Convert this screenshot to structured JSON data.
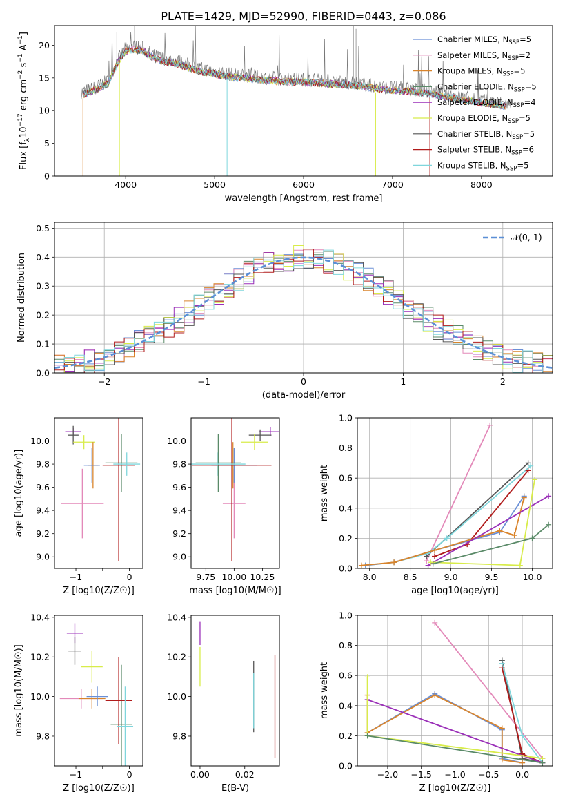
{
  "title": "PLATE=1429, MJD=52990, FIBERID=0443, z=0.086",
  "colors": {
    "chab_miles": "#6a8fd6",
    "salp_miles": "#e389b9",
    "krou_miles": "#d9842b",
    "chab_elodie": "#5a8a68",
    "salp_elodie": "#9a2fb8",
    "krou_elodie": "#d8ec4a",
    "chab_stelib": "#555555",
    "salp_stelib": "#b01b1b",
    "krou_stelib": "#7fd6dc",
    "gaussian": "#5b8fd6",
    "grid": "#b0b0b0"
  },
  "legend_spectrum": [
    {
      "key": "chab_miles",
      "label": "Chabrier MILES, N",
      "sub": "SSP",
      "tail": "=5"
    },
    {
      "key": "salp_miles",
      "label": "Salpeter MILES, N",
      "sub": "SSP",
      "tail": "=2"
    },
    {
      "key": "krou_miles",
      "label": "Kroupa MILES, N",
      "sub": "SSP",
      "tail": "=5"
    },
    {
      "key": "chab_elodie",
      "label": "Chabrier ELODIE, N",
      "sub": "SSP",
      "tail": "=5"
    },
    {
      "key": "salp_elodie",
      "label": "Salpeter ELODIE, N",
      "sub": "SSP",
      "tail": "=4"
    },
    {
      "key": "krou_elodie",
      "label": "Kroupa ELODIE, N",
      "sub": "SSP",
      "tail": "=5"
    },
    {
      "key": "chab_stelib",
      "label": "Chabrier STELIB, N",
      "sub": "SSP",
      "tail": "=5"
    },
    {
      "key": "salp_stelib",
      "label": "Salpeter STELIB, N",
      "sub": "SSP",
      "tail": "=6"
    },
    {
      "key": "krou_stelib",
      "label": "Kroupa STELIB, N",
      "sub": "SSP",
      "tail": "=5"
    }
  ],
  "legend_hist": {
    "label": "𝒩(0, 1)"
  },
  "chart_data": [
    {
      "id": "spectrum",
      "type": "line",
      "xlabel": "wavelength [Angstrom, rest frame]",
      "ylabel_main": "Flux [f",
      "ylabel_sub": "λ",
      "ylabel_mid": "10",
      "ylabel_sup": "−17",
      "ylabel_tail": " erg cm",
      "ylabel_sup2": "−2",
      "ylabel_tail2": " s",
      "ylabel_sup3": "−1",
      "ylabel_tail3": " A",
      "ylabel_sup4": "−1",
      "ylabel_end": "]",
      "xlim": [
        3200,
        8800
      ],
      "ylim": [
        0,
        23
      ],
      "xticks": [
        4000,
        5000,
        6000,
        7000,
        8000
      ],
      "yticks": [
        0,
        5,
        10,
        15,
        20
      ],
      "data_x": [
        3500,
        3600,
        3700,
        3800,
        3900,
        4000,
        4100,
        4200,
        4300,
        4400,
        4500,
        4600,
        4800,
        5000,
        5200,
        5400,
        5600,
        5800,
        6000,
        6200,
        6400,
        6600,
        6800,
        7000,
        7200,
        7400,
        7600,
        7800,
        8000,
        8200,
        8300
      ],
      "data_y": [
        12.8,
        13.2,
        13.8,
        14.5,
        17.5,
        19.5,
        19.8,
        19.5,
        18.5,
        18.0,
        17.8,
        17.5,
        16.5,
        16.0,
        15.5,
        15.3,
        15.0,
        14.8,
        14.8,
        14.6,
        14.4,
        14.2,
        13.8,
        13.5,
        13.3,
        13.0,
        12.5,
        12.0,
        11.6,
        11.2,
        11.0
      ],
      "grid": false
    },
    {
      "id": "residuals",
      "type": "bar",
      "xlabel": "(data-model)/error",
      "ylabel": "Normed distribution",
      "xlim": [
        -2.5,
        2.5
      ],
      "ylim": [
        0,
        0.52
      ],
      "xticks": [
        -2,
        -1,
        0,
        1,
        2
      ],
      "xtick_labels": [
        "−2",
        "−1",
        "0",
        "1",
        "2"
      ],
      "yticks": [
        0.0,
        0.1,
        0.2,
        0.3,
        0.4,
        0.5
      ],
      "ytick_labels": [
        "0.0",
        "0.1",
        "0.2",
        "0.3",
        "0.4",
        "0.5"
      ],
      "grid": true,
      "legend_position": "top-right",
      "gaussian": {
        "mean": 0,
        "sigma": 1
      }
    },
    {
      "id": "age_vs_Z",
      "type": "scatter",
      "xlabel": "Z [log10(Z/Z☉)]",
      "ylabel": "age  [log10(age/yr)]",
      "xlim": [
        -1.4,
        0.25
      ],
      "ylim": [
        8.9,
        10.2
      ],
      "xticks": [
        -1,
        -0.5,
        0
      ],
      "xtick_labels": [
        "−1",
        "",
        "0"
      ],
      "yticks": [
        9.0,
        9.2,
        9.4,
        9.6,
        9.8,
        10.0
      ],
      "ytick_labels": [
        "9.0",
        "9.2",
        "9.4",
        "9.6",
        "9.8",
        "10.0"
      ],
      "points": [
        {
          "key": "salp_elodie",
          "x": -1.05,
          "y": 10.08,
          "xerr": 0.15,
          "yerr": 0.03
        },
        {
          "key": "chab_stelib",
          "x": -1.05,
          "y": 10.05,
          "xerr": 0.1,
          "yerr": 0.08
        },
        {
          "key": "krou_elodie",
          "x": -0.85,
          "y": 9.99,
          "xerr": 0.2,
          "yerr": 0.06
        },
        {
          "key": "salp_miles",
          "x": -0.88,
          "y": 9.46,
          "xerr": 0.4,
          "yerr": 0.3
        },
        {
          "key": "krou_miles",
          "x": -0.68,
          "y": 9.79,
          "xerr": 0.1,
          "yerr": 0.2
        },
        {
          "key": "chab_miles",
          "x": -0.7,
          "y": 9.79,
          "xerr": 0.15,
          "yerr": 0.15
        },
        {
          "key": "chab_elodie",
          "x": -0.15,
          "y": 9.81,
          "xerr": 0.3,
          "yerr": 0.25
        },
        {
          "key": "salp_stelib",
          "x": -0.2,
          "y": 9.79,
          "xerr": 0.3,
          "yerr": 0.83
        },
        {
          "key": "krou_stelib",
          "x": -0.05,
          "y": 9.8,
          "xerr": 0.25,
          "yerr": 0.1
        }
      ]
    },
    {
      "id": "age_vs_mass",
      "type": "scatter",
      "xlabel": "mass [log10(M/M☉)]",
      "ylabel": "",
      "xlim": [
        9.62,
        10.4
      ],
      "ylim": [
        8.9,
        10.2
      ],
      "xticks": [
        9.75,
        10.0,
        10.25
      ],
      "xtick_labels": [
        "9.75",
        "10.00",
        "10.25"
      ],
      "yticks": [
        9.0,
        9.2,
        9.4,
        9.6,
        9.8,
        10.0
      ],
      "ytick_labels": [
        "9.0",
        "9.2",
        "9.4",
        "9.6",
        "9.8",
        "10.0"
      ],
      "points": [
        {
          "key": "salp_elodie",
          "x": 10.32,
          "y": 10.08,
          "xerr": 0.1,
          "yerr": 0.04
        },
        {
          "key": "chab_stelib",
          "x": 10.23,
          "y": 10.05,
          "xerr": 0.1,
          "yerr": 0.05
        },
        {
          "key": "krou_elodie",
          "x": 10.18,
          "y": 9.99,
          "xerr": 0.12,
          "yerr": 0.07
        },
        {
          "key": "salp_miles",
          "x": 10.0,
          "y": 9.46,
          "xerr": 0.1,
          "yerr": 0.3
        },
        {
          "key": "krou_miles",
          "x": 9.99,
          "y": 9.79,
          "xerr": 0.15,
          "yerr": 0.2
        },
        {
          "key": "chab_miles",
          "x": 10.0,
          "y": 9.79,
          "xerr": 0.2,
          "yerr": 0.15
        },
        {
          "key": "chab_elodie",
          "x": 9.86,
          "y": 9.81,
          "xerr": 0.2,
          "yerr": 0.25
        },
        {
          "key": "salp_stelib",
          "x": 9.98,
          "y": 9.79,
          "xerr": 0.35,
          "yerr": 0.83
        },
        {
          "key": "krou_stelib",
          "x": 9.85,
          "y": 9.8,
          "xerr": 0.25,
          "yerr": 0.1
        }
      ]
    },
    {
      "id": "mass_weight_vs_age",
      "type": "line",
      "xlabel": "age  [log10(age/yr)]",
      "ylabel": "mass weight",
      "xlim": [
        7.85,
        10.25
      ],
      "ylim": [
        0,
        1.0
      ],
      "xticks": [
        8.0,
        8.5,
        9.0,
        9.5,
        10.0
      ],
      "xtick_labels": [
        "8.0",
        "8.5",
        "9.0",
        "9.5",
        "10.0"
      ],
      "yticks": [
        0.0,
        0.2,
        0.4,
        0.6,
        0.8,
        1.0
      ],
      "ytick_labels": [
        "0.0",
        "0.2",
        "0.4",
        "0.6",
        "0.8",
        "1.0"
      ],
      "grid": true,
      "series": [
        {
          "key": "salp_miles",
          "x": [
            8.7,
            9.48
          ],
          "y": [
            0.05,
            0.95
          ]
        },
        {
          "key": "chab_stelib",
          "x": [
            8.7,
            9.95
          ],
          "y": [
            0.08,
            0.7
          ]
        },
        {
          "key": "krou_stelib",
          "x": [
            7.95,
            8.3,
            8.72,
            8.95,
            9.98
          ],
          "y": [
            0.02,
            0.04,
            0.1,
            0.2,
            0.68
          ]
        },
        {
          "key": "salp_stelib",
          "x": [
            8.8,
            9.2,
            9.95
          ],
          "y": [
            0.08,
            0.16,
            0.65
          ]
        },
        {
          "key": "chab_miles",
          "x": [
            7.95,
            8.3,
            8.8,
            9.6,
            9.9
          ],
          "y": [
            0.02,
            0.04,
            0.12,
            0.24,
            0.48
          ]
        },
        {
          "key": "krou_miles",
          "x": [
            7.9,
            8.3,
            8.8,
            9.6,
            9.78,
            9.9
          ],
          "y": [
            0.02,
            0.04,
            0.12,
            0.25,
            0.22,
            0.47
          ]
        },
        {
          "key": "salp_elodie",
          "x": [
            8.72,
            10.2
          ],
          "y": [
            0.02,
            0.48
          ]
        },
        {
          "key": "krou_elodie",
          "x": [
            8.75,
            9.85,
            10.03
          ],
          "y": [
            0.04,
            0.02,
            0.59
          ]
        },
        {
          "key": "chab_elodie",
          "x": [
            8.78,
            10.0,
            10.2
          ],
          "y": [
            0.03,
            0.2,
            0.29
          ]
        }
      ]
    },
    {
      "id": "mass_vs_Z",
      "type": "scatter",
      "xlabel": "Z [log10(Z/Z☉)]",
      "ylabel": "mass [log10(M/M☉)]",
      "xlim": [
        -1.4,
        0.25
      ],
      "ylim": [
        9.65,
        10.41
      ],
      "xticks": [
        -1,
        -0.5,
        0
      ],
      "xtick_labels": [
        "−1",
        "",
        "0"
      ],
      "yticks": [
        9.8,
        10.0,
        10.2,
        10.4
      ],
      "ytick_labels": [
        "9.8",
        "10.0",
        "10.2",
        "10.4"
      ],
      "points": [
        {
          "key": "salp_elodie",
          "x": -1.02,
          "y": 10.32,
          "xerr": 0.15,
          "yerr": 0.05
        },
        {
          "key": "chab_stelib",
          "x": -1.02,
          "y": 10.23,
          "xerr": 0.12,
          "yerr": 0.07
        },
        {
          "key": "krou_elodie",
          "x": -0.7,
          "y": 10.15,
          "xerr": 0.2,
          "yerr": 0.08
        },
        {
          "key": "salp_miles",
          "x": -0.9,
          "y": 9.99,
          "xerr": 0.4,
          "yerr": 0.05
        },
        {
          "key": "krou_miles",
          "x": -0.7,
          "y": 9.99,
          "xerr": 0.25,
          "yerr": 0.05
        },
        {
          "key": "chab_miles",
          "x": -0.6,
          "y": 10.0,
          "xerr": 0.2,
          "yerr": 0.05
        },
        {
          "key": "chab_elodie",
          "x": -0.15,
          "y": 9.86,
          "xerr": 0.2,
          "yerr": 0.3
        },
        {
          "key": "salp_stelib",
          "x": -0.2,
          "y": 9.98,
          "xerr": 0.25,
          "yerr": 0.22
        },
        {
          "key": "krou_stelib",
          "x": -0.08,
          "y": 9.85,
          "xerr": 0.15,
          "yerr": 0.2
        }
      ]
    },
    {
      "id": "mass_vs_ebv",
      "type": "scatter",
      "xlabel": "E(B-V)",
      "ylabel": "",
      "xlim": [
        -0.004,
        0.0355
      ],
      "ylim": [
        9.65,
        10.41
      ],
      "xticks": [
        0.0,
        0.02
      ],
      "xtick_labels": [
        "0.00",
        "0.02"
      ],
      "yticks": [
        9.8,
        10.0,
        10.2,
        10.4
      ],
      "ytick_labels": [
        "9.8",
        "10.0",
        "10.2",
        "10.4"
      ],
      "points": [
        {
          "key": "salp_elodie",
          "x": 0.0,
          "y": 10.32,
          "xerr": 0,
          "yerr": 0.06
        },
        {
          "key": "krou_elodie",
          "x": 0.0,
          "y": 10.15,
          "xerr": 0,
          "yerr": 0.1
        },
        {
          "key": "chab_stelib",
          "x": 0.024,
          "y": 10.0,
          "xerr": 0,
          "yerr": 0.18
        },
        {
          "key": "krou_stelib",
          "x": 0.024,
          "y": 9.98,
          "xerr": 0,
          "yerr": 0.14
        },
        {
          "key": "salp_stelib",
          "x": 0.0335,
          "y": 9.95,
          "xerr": 0,
          "yerr": 0.26
        }
      ]
    },
    {
      "id": "mass_weight_vs_Z",
      "type": "line",
      "xlabel": "Z [log10(Z/Z☉)]",
      "ylabel": "mass weight",
      "xlim": [
        -2.45,
        0.45
      ],
      "ylim": [
        0,
        1.0
      ],
      "xticks": [
        -2.0,
        -1.5,
        -1.0,
        -0.5,
        0.0
      ],
      "xtick_labels": [
        "−2.0",
        "−1.5",
        "−1.0",
        "−0.5",
        "0.0"
      ],
      "yticks": [
        0.0,
        0.2,
        0.4,
        0.6,
        0.8,
        1.0
      ],
      "ytick_labels": [
        "0.0",
        "0.2",
        "0.4",
        "0.6",
        "0.8",
        "1.0"
      ],
      "grid": true,
      "series": [
        {
          "key": "salp_miles",
          "x": [
            -1.3,
            0.3
          ],
          "y": [
            0.95,
            0.05
          ]
        },
        {
          "key": "chab_stelib",
          "x": [
            -0.3,
            0.0,
            0.3
          ],
          "y": [
            0.7,
            0.05,
            0.02
          ]
        },
        {
          "key": "krou_stelib",
          "x": [
            -0.3,
            0.0,
            0.3
          ],
          "y": [
            0.68,
            0.2,
            0.02
          ]
        },
        {
          "key": "salp_stelib",
          "x": [
            -0.3,
            0.0,
            0.3
          ],
          "y": [
            0.65,
            0.08,
            0.02
          ]
        },
        {
          "key": "chab_miles",
          "x": [
            -2.3,
            -1.3,
            -0.3,
            -0.3,
            0.0
          ],
          "y": [
            0.22,
            0.48,
            0.24,
            0.05,
            0.02
          ]
        },
        {
          "key": "krou_miles",
          "x": [
            -2.3,
            -2.3,
            -1.3,
            -0.3,
            -0.3,
            0.0
          ],
          "y": [
            0.47,
            0.22,
            0.47,
            0.25,
            0.04,
            0.02
          ]
        },
        {
          "key": "salp_elodie",
          "x": [
            -2.3,
            0.3
          ],
          "y": [
            0.44,
            0.02
          ]
        },
        {
          "key": "krou_elodie",
          "x": [
            -2.3,
            -2.3,
            0.3
          ],
          "y": [
            0.59,
            0.2,
            0.05
          ]
        },
        {
          "key": "chab_elodie",
          "x": [
            -2.3,
            0.3
          ],
          "y": [
            0.2,
            0.02
          ]
        }
      ]
    }
  ]
}
